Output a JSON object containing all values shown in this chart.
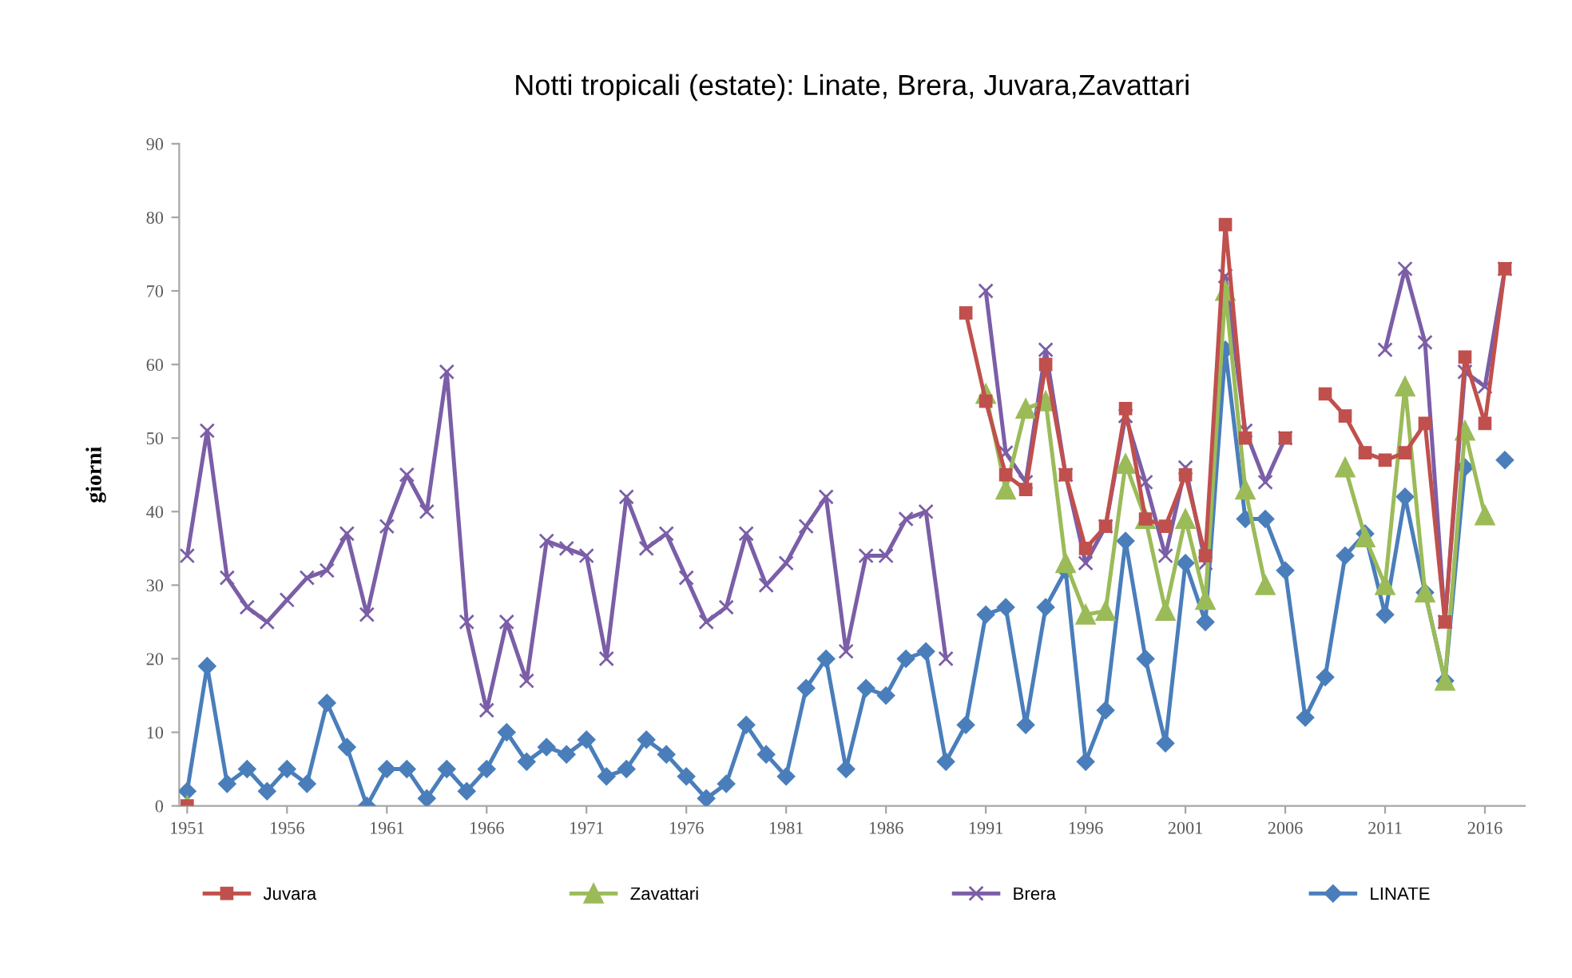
{
  "chart_data": {
    "type": "line",
    "title": "Notti tropicali (estate): Linate, Brera, Juvara,Zavattari",
    "ylabel": "giorni",
    "x": [
      1951,
      1952,
      1953,
      1954,
      1955,
      1956,
      1957,
      1958,
      1959,
      1960,
      1961,
      1962,
      1963,
      1964,
      1965,
      1966,
      1967,
      1968,
      1969,
      1970,
      1971,
      1972,
      1973,
      1974,
      1975,
      1976,
      1977,
      1978,
      1979,
      1980,
      1981,
      1982,
      1983,
      1984,
      1985,
      1986,
      1987,
      1988,
      1989,
      1990,
      1991,
      1992,
      1993,
      1994,
      1995,
      1996,
      1997,
      1998,
      1999,
      2000,
      2001,
      2002,
      2003,
      2004,
      2005,
      2006,
      2007,
      2008,
      2009,
      2010,
      2011,
      2012,
      2013,
      2014,
      2015,
      2016,
      2017
    ],
    "series": [
      {
        "name": "Juvara",
        "color": "#c0504d",
        "marker": "square",
        "values": [
          0,
          null,
          null,
          null,
          null,
          null,
          null,
          null,
          null,
          null,
          null,
          null,
          null,
          null,
          null,
          null,
          null,
          null,
          null,
          null,
          null,
          null,
          null,
          null,
          null,
          null,
          null,
          null,
          null,
          null,
          null,
          null,
          null,
          null,
          null,
          null,
          null,
          null,
          null,
          67,
          55,
          45,
          43,
          60,
          45,
          35,
          38,
          54,
          39,
          38,
          45,
          34,
          79,
          50,
          null,
          50,
          null,
          56,
          53,
          48,
          47,
          48,
          52,
          25,
          61,
          52,
          73
        ]
      },
      {
        "name": "Zavattari",
        "color": "#9bbb59",
        "marker": "triangle",
        "values": [
          0,
          null,
          null,
          null,
          null,
          null,
          null,
          null,
          null,
          null,
          null,
          null,
          null,
          null,
          null,
          null,
          null,
          null,
          null,
          null,
          null,
          null,
          null,
          null,
          null,
          null,
          null,
          null,
          null,
          null,
          null,
          null,
          null,
          null,
          null,
          null,
          null,
          null,
          null,
          null,
          56,
          43,
          54,
          55,
          33,
          26,
          26.5,
          46.5,
          39,
          26.5,
          39,
          28,
          70,
          43,
          30,
          null,
          null,
          null,
          46,
          36.5,
          30,
          57,
          29,
          17,
          51,
          39.5,
          null
        ]
      },
      {
        "name": "Brera",
        "color": "#7b5ea7",
        "marker": "cross",
        "values": [
          34,
          51,
          31,
          27,
          25,
          28,
          31,
          32,
          37,
          26,
          38,
          45,
          40,
          59,
          25,
          13,
          25,
          17,
          36,
          35,
          34,
          20,
          42,
          35,
          37,
          31,
          25,
          27,
          37,
          30,
          33,
          38,
          42,
          21,
          34,
          34,
          39,
          40,
          20,
          null,
          70,
          48,
          44,
          62,
          45,
          33,
          38,
          53,
          44,
          34,
          46,
          33,
          72,
          51,
          44,
          50,
          null,
          null,
          null,
          null,
          62,
          73,
          63,
          25,
          59,
          57,
          73
        ]
      },
      {
        "name": "LINATE",
        "color": "#4a7ebb",
        "marker": "diamond",
        "values": [
          2,
          19,
          3,
          5,
          2,
          5,
          3,
          14,
          8,
          0,
          5,
          5,
          1,
          5,
          2,
          5,
          10,
          6,
          8,
          7,
          9,
          4,
          5,
          9,
          7,
          4,
          1,
          3,
          11,
          7,
          4,
          16,
          20,
          5,
          16,
          15,
          20,
          21,
          6,
          11,
          26,
          27,
          11,
          27,
          32,
          6,
          13,
          36,
          20,
          8.5,
          33,
          25,
          62,
          39,
          39,
          32,
          12,
          17.5,
          34,
          37,
          26,
          42,
          29,
          17,
          46,
          null,
          47
        ]
      }
    ],
    "xlim": [
      1950.6,
      2018
    ],
    "xticks": [
      1951,
      1956,
      1961,
      1966,
      1971,
      1976,
      1981,
      1986,
      1991,
      1996,
      2001,
      2006,
      2011,
      2016
    ],
    "ylim": [
      0,
      90
    ],
    "yticks": [
      0,
      10,
      20,
      30,
      40,
      50,
      60,
      70,
      80,
      90
    ],
    "grid": false,
    "legend": "bottom",
    "line_style": "solid"
  }
}
